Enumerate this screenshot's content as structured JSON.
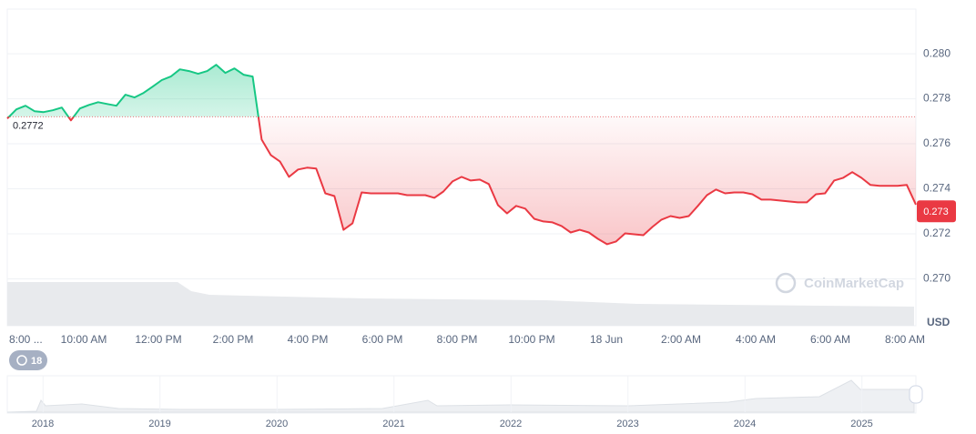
{
  "chart_data": {
    "type": "line",
    "unit": "USD",
    "watermark": "CoinMarketCap",
    "history_badge": "18",
    "xtick_labels": [
      "8:00 ...",
      "10:00 AM",
      "12:00 PM",
      "2:00 PM",
      "4:00 PM",
      "6:00 PM",
      "8:00 PM",
      "10:00 PM",
      "18 Jun",
      "2:00 AM",
      "4:00 AM",
      "6:00 AM",
      "8:00 AM"
    ],
    "values": [
      0.27712,
      0.27753,
      0.27769,
      0.27745,
      0.27741,
      0.27749,
      0.27761,
      0.27704,
      0.27757,
      0.27773,
      0.27785,
      0.27777,
      0.27769,
      0.27818,
      0.27806,
      0.27826,
      0.27854,
      0.27883,
      0.27899,
      0.27931,
      0.27923,
      0.27911,
      0.27923,
      0.27951,
      0.27915,
      0.27935,
      0.27907,
      0.27899,
      0.27619,
      0.2755,
      0.27522,
      0.27453,
      0.27486,
      0.27494,
      0.2749,
      0.2738,
      0.27368,
      0.27218,
      0.27247,
      0.27384,
      0.2738,
      0.2738,
      0.2738,
      0.2738,
      0.27372,
      0.27372,
      0.27372,
      0.2736,
      0.27388,
      0.27433,
      0.27453,
      0.27437,
      0.27441,
      0.27421,
      0.27328,
      0.27291,
      0.27324,
      0.27312,
      0.27267,
      0.27255,
      0.27251,
      0.27235,
      0.27206,
      0.27218,
      0.27206,
      0.27178,
      0.27154,
      0.27166,
      0.27202,
      0.27198,
      0.27194,
      0.27231,
      0.27263,
      0.27279,
      0.27271,
      0.27279,
      0.27324,
      0.27372,
      0.27397,
      0.2738,
      0.27384,
      0.27384,
      0.27376,
      0.27352,
      0.27352,
      0.27348,
      0.27344,
      0.2734,
      0.2734,
      0.27376,
      0.2738,
      0.27437,
      0.27449,
      0.27474,
      0.27449,
      0.27417,
      0.27413,
      0.27413,
      0.27413,
      0.27417,
      0.2733
    ],
    "baseline": 0.2772,
    "current_price": 0.273,
    "up_color": "#16c784",
    "down_color": "#ea3943",
    "ylim": [
      0.268,
      0.282
    ],
    "yticks": [
      {
        "value": 0.27,
        "label": "0.270"
      },
      {
        "value": 0.272,
        "label": "0.272"
      },
      {
        "value": 0.274,
        "label": "0.274"
      },
      {
        "value": 0.276,
        "label": "0.276"
      },
      {
        "value": 0.278,
        "label": "0.278"
      },
      {
        "value": 0.28,
        "label": "0.280"
      }
    ],
    "grid": true,
    "navigator_years": [
      "2018",
      "2019",
      "2020",
      "2021",
      "2022",
      "2023",
      "2024",
      "2025"
    ]
  }
}
